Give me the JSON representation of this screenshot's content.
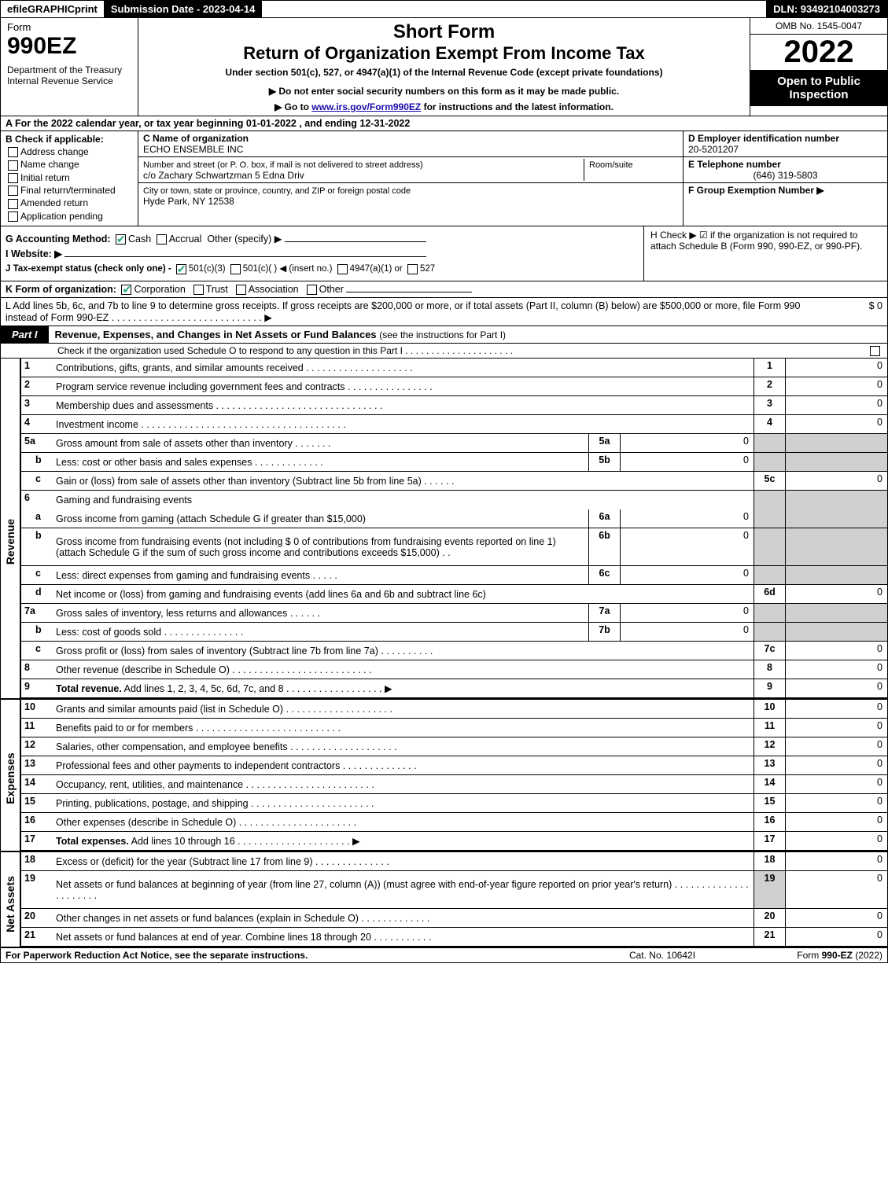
{
  "top_bar": {
    "efile_prefix": "efile ",
    "efile_graphic": "GRAPHIC",
    "efile_print": " print",
    "submission": "Submission Date - 2023-04-14",
    "dln": "DLN: 93492104003273"
  },
  "header": {
    "form_label": "Form",
    "form_number": "990EZ",
    "dept": "Department of the Treasury\nInternal Revenue Service",
    "short_form": "Short Form",
    "title": "Return of Organization Exempt From Income Tax",
    "subtitle": "Under section 501(c), 527, or 4947(a)(1) of the Internal Revenue Code (except private foundations)",
    "notice": "▶ Do not enter social security numbers on this form as it may be made public.",
    "link_prefix": "▶ Go to ",
    "link_text": "www.irs.gov/Form990EZ",
    "link_suffix": " for instructions and the latest information.",
    "omb": "OMB No. 1545-0047",
    "year": "2022",
    "inspection": "Open to Public Inspection"
  },
  "section_a": "A  For the 2022 calendar year, or tax year beginning 01-01-2022  , and ending 12-31-2022",
  "section_b": {
    "label": "B  Check if applicable:",
    "items": [
      "Address change",
      "Name change",
      "Initial return",
      "Final return/terminated",
      "Amended return",
      "Application pending"
    ]
  },
  "section_c": {
    "name_label": "C Name of organization",
    "name": "ECHO ENSEMBLE INC",
    "street_label": "Number and street (or P. O. box, if mail is not delivered to street address)",
    "room_label": "Room/suite",
    "street": "c/o Zachary Schwartzman 5 Edna Driv",
    "city_label": "City or town, state or province, country, and ZIP or foreign postal code",
    "city": "Hyde Park, NY  12538"
  },
  "section_d": {
    "ein_label": "D Employer identification number",
    "ein": "20-5201207",
    "phone_label": "E Telephone number",
    "phone": "(646) 319-5803",
    "group_label": "F Group Exemption Number  ▶"
  },
  "section_g": {
    "label": "G Accounting Method:",
    "cash": "Cash",
    "accrual": "Accrual",
    "other": "Other (specify) ▶",
    "website_label": "I Website: ▶",
    "j_label": "J Tax-exempt status (check only one) -",
    "j_501c3": "501(c)(3)",
    "j_501c": "501(c)(  ) ◀ (insert no.)",
    "j_4947": "4947(a)(1) or",
    "j_527": "527"
  },
  "section_h": {
    "text": "H  Check ▶  ☑  if the organization is not required to attach Schedule B (Form 990, 990-EZ, or 990-PF)."
  },
  "line_k": {
    "label": "K Form of organization:",
    "corp": "Corporation",
    "trust": "Trust",
    "assoc": "Association",
    "other": "Other"
  },
  "line_l": {
    "text": "L Add lines 5b, 6c, and 7b to line 9 to determine gross receipts. If gross receipts are $200,000 or more, or if total assets (Part II, column (B) below) are $500,000 or more, file Form 990 instead of Form 990-EZ  .  .  .  .  .  .  .  .  .  .  .  .  .  .  .  .  .  .  .  .  .  .  .  .  .  .  .  .  ▶",
    "amount": "$ 0"
  },
  "part1": {
    "tab": "Part I",
    "title": "Revenue, Expenses, and Changes in Net Assets or Fund Balances",
    "title_suffix": " (see the instructions for Part I)",
    "schedo": "Check if the organization used Schedule O to respond to any question in this Part I  .  .  .  .  .  .  .  .  .  .  .  .  .  .  .  .  .  .  .  .  ."
  },
  "sidelabels": {
    "revenue": "Revenue",
    "expenses": "Expenses",
    "netassets": "Net Assets"
  },
  "rows": [
    {
      "n": "1",
      "d": "Contributions, gifts, grants, and similar amounts received  .  .  .  .  .  .  .  .  .  .  .  .  .  .  .  .  .  .  .  .",
      "rn": "1",
      "rv": "0"
    },
    {
      "n": "2",
      "d": "Program service revenue including government fees and contracts  .  .  .  .  .  .  .  .  .  .  .  .  .  .  .  .",
      "rn": "2",
      "rv": "0"
    },
    {
      "n": "3",
      "d": "Membership dues and assessments  .  .  .  .  .  .  .  .  .  .  .  .  .  .  .  .  .  .  .  .  .  .  .  .  .  .  .  .  .  .  .",
      "rn": "3",
      "rv": "0"
    },
    {
      "n": "4",
      "d": "Investment income  .  .  .  .  .  .  .  .  .  .  .  .  .  .  .  .  .  .  .  .  .  .  .  .  .  .  .  .  .  .  .  .  .  .  .  .  .  .",
      "rn": "4",
      "rv": "0"
    },
    {
      "n": "5a",
      "d": "Gross amount from sale of assets other than inventory  .  .  .  .  .  .  .",
      "mn": "5a",
      "mv": "0",
      "shade": true
    },
    {
      "n": "b",
      "sub": true,
      "d": "Less: cost or other basis and sales expenses  .  .  .  .  .  .  .  .  .  .  .  .  .",
      "mn": "5b",
      "mv": "0",
      "shade": true
    },
    {
      "n": "c",
      "sub": true,
      "d": "Gain or (loss) from sale of assets other than inventory (Subtract line 5b from line 5a)  .  .  .  .  .  .",
      "rn": "5c",
      "rv": "0"
    },
    {
      "n": "6",
      "d": "Gaming and fundraising events",
      "shade": true,
      "nomid": true,
      "noborder": true
    },
    {
      "n": "a",
      "sub": true,
      "d": "Gross income from gaming (attach Schedule G if greater than $15,000)",
      "mn": "6a",
      "mv": "0",
      "shade": true
    },
    {
      "n": "b",
      "sub": true,
      "d": "Gross income from fundraising events (not including $  0            of contributions from fundraising events reported on line 1) (attach Schedule G if the sum of such gross income and contributions exceeds $15,000)      .    .",
      "mn": "6b",
      "mv": "0",
      "shade": true,
      "tall": true
    },
    {
      "n": "c",
      "sub": true,
      "d": "Less: direct expenses from gaming and fundraising events  .  .  .  .  .",
      "mn": "6c",
      "mv": "0",
      "shade": true
    },
    {
      "n": "d",
      "sub": true,
      "d": "Net income or (loss) from gaming and fundraising events (add lines 6a and 6b and subtract line 6c)",
      "rn": "6d",
      "rv": "0"
    },
    {
      "n": "7a",
      "d": "Gross sales of inventory, less returns and allowances  .  .  .  .  .  .",
      "mn": "7a",
      "mv": "0",
      "shade": true
    },
    {
      "n": "b",
      "sub": true,
      "d": "Less: cost of goods sold           .  .  .  .  .  .  .  .  .  .  .  .  .  .  .",
      "mn": "7b",
      "mv": "0",
      "shade": true
    },
    {
      "n": "c",
      "sub": true,
      "d": "Gross profit or (loss) from sales of inventory (Subtract line 7b from line 7a)  .  .  .  .  .  .  .  .  .  .",
      "rn": "7c",
      "rv": "0"
    },
    {
      "n": "8",
      "d": "Other revenue (describe in Schedule O)  .  .  .  .  .  .  .  .  .  .  .  .  .  .  .  .  .  .  .  .  .  .  .  .  .  .",
      "rn": "8",
      "rv": "0"
    },
    {
      "n": "9",
      "bold": true,
      "d": "Total revenue. Add lines 1, 2, 3, 4, 5c, 6d, 7c, and 8  .  .  .  .  .  .  .  .  .  .  .  .  .  .  .  .  .  .    ▶",
      "rn": "9",
      "rv": "0"
    }
  ],
  "rows_exp": [
    {
      "n": "10",
      "d": "Grants and similar amounts paid (list in Schedule O)  .  .  .  .  .  .  .  .  .  .  .  .  .  .  .  .  .  .  .  .",
      "rn": "10",
      "rv": "0"
    },
    {
      "n": "11",
      "d": "Benefits paid to or for members     .  .  .  .  .  .  .  .  .  .  .  .  .  .  .  .  .  .  .  .  .  .  .  .  .  .  .",
      "rn": "11",
      "rv": "0"
    },
    {
      "n": "12",
      "d": "Salaries, other compensation, and employee benefits  .  .  .  .  .  .  .  .  .  .  .  .  .  .  .  .  .  .  .  .",
      "rn": "12",
      "rv": "0"
    },
    {
      "n": "13",
      "d": "Professional fees and other payments to independent contractors  .  .  .  .  .  .  .  .  .  .  .  .  .  .",
      "rn": "13",
      "rv": "0"
    },
    {
      "n": "14",
      "d": "Occupancy, rent, utilities, and maintenance .  .  .  .  .  .  .  .  .  .  .  .  .  .  .  .  .  .  .  .  .  .  .  .",
      "rn": "14",
      "rv": "0"
    },
    {
      "n": "15",
      "d": "Printing, publications, postage, and shipping .  .  .  .  .  .  .  .  .  .  .  .  .  .  .  .  .  .  .  .  .  .  .",
      "rn": "15",
      "rv": "0"
    },
    {
      "n": "16",
      "d": "Other expenses (describe in Schedule O)     .  .  .  .  .  .  .  .  .  .  .  .  .  .  .  .  .  .  .  .  .  .",
      "rn": "16",
      "rv": "0"
    },
    {
      "n": "17",
      "bold": true,
      "d": "Total expenses. Add lines 10 through 16     .  .  .  .  .  .  .  .  .  .  .  .  .  .  .  .  .  .  .  .  .   ▶",
      "rn": "17",
      "rv": "0"
    }
  ],
  "rows_net": [
    {
      "n": "18",
      "d": "Excess or (deficit) for the year (Subtract line 17 from line 9)        .  .  .  .  .  .  .  .  .  .  .  .  .  .",
      "rn": "18",
      "rv": "0"
    },
    {
      "n": "19",
      "d": "Net assets or fund balances at beginning of year (from line 27, column (A)) (must agree with end-of-year figure reported on prior year's return) .  .  .  .  .  .  .  .  .  .  .  .  .  .  .  .  .  .  .  .  .  .",
      "rn": "19",
      "rv": "0",
      "tall": true,
      "shade_top": true
    },
    {
      "n": "20",
      "d": "Other changes in net assets or fund balances (explain in Schedule O) .  .  .  .  .  .  .  .  .  .  .  .  .",
      "rn": "20",
      "rv": "0"
    },
    {
      "n": "21",
      "d": "Net assets or fund balances at end of year. Combine lines 18 through 20 .  .  .  .  .  .  .  .  .  .  .",
      "rn": "21",
      "rv": "0"
    }
  ],
  "footer": {
    "left": "For Paperwork Reduction Act Notice, see the separate instructions.",
    "center": "Cat. No. 10642I",
    "right_prefix": "Form ",
    "right_form": "990-EZ",
    "right_suffix": " (2022)"
  },
  "colors": {
    "black": "#000000",
    "white": "#ffffff",
    "shade": "#d0d0d0",
    "link": "#1a0dab",
    "check_green": "#22aa77"
  }
}
